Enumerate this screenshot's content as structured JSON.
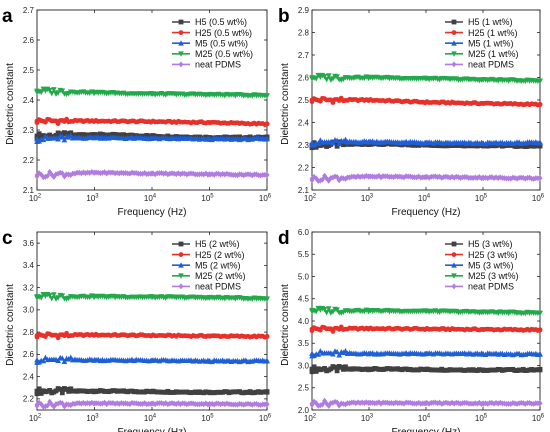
{
  "chart_data": [
    {
      "type": "line",
      "panel": "a",
      "xlabel": "Frequency (Hz)",
      "ylabel": "Dielectric constant",
      "x_scale": "log",
      "xlim": [
        100,
        1000000
      ],
      "ylim": [
        2.1,
        2.7
      ],
      "yticks": [
        "2.1",
        "2.2",
        "2.3",
        "2.4",
        "2.5",
        "2.6",
        "2.7"
      ],
      "legend_position": "top-right",
      "series": [
        {
          "name": "H5 (0.5 wt%)",
          "color": "#404040",
          "marker": "square",
          "x": [
            100,
            1000,
            10000,
            100000,
            1000000
          ],
          "y": [
            2.28,
            2.285,
            2.28,
            2.275,
            2.275
          ]
        },
        {
          "name": "H25 (0.5 wt%)",
          "color": "#e8302a",
          "marker": "circle",
          "x": [
            100,
            1000,
            10000,
            100000,
            1000000
          ],
          "y": [
            2.33,
            2.33,
            2.328,
            2.325,
            2.32
          ]
        },
        {
          "name": "M5 (0.5 wt%)",
          "color": "#1f5fd6",
          "marker": "triangle-up",
          "x": [
            100,
            1000,
            10000,
            100000,
            1000000
          ],
          "y": [
            2.27,
            2.275,
            2.272,
            2.27,
            2.27
          ]
        },
        {
          "name": "M25 (0.5 wt%)",
          "color": "#23a94a",
          "marker": "triangle-down",
          "x": [
            100,
            1000,
            10000,
            100000,
            1000000
          ],
          "y": [
            2.43,
            2.425,
            2.42,
            2.418,
            2.415
          ]
        },
        {
          "name": "neat PDMS",
          "color": "#b07ce0",
          "marker": "diamond",
          "x": [
            100,
            1000,
            10000,
            100000,
            1000000
          ],
          "y": [
            2.15,
            2.158,
            2.155,
            2.153,
            2.15
          ]
        }
      ]
    },
    {
      "type": "line",
      "panel": "b",
      "xlabel": "Frequency (Hz)",
      "ylabel": "Dielectric constant",
      "x_scale": "log",
      "xlim": [
        100,
        1000000
      ],
      "ylim": [
        2.1,
        2.9
      ],
      "yticks": [
        "2.1",
        "2.2",
        "2.3",
        "2.4",
        "2.5",
        "2.6",
        "2.7",
        "2.8",
        "2.9"
      ],
      "legend_position": "top-right",
      "series": [
        {
          "name": "H5 (1 wt%)",
          "color": "#404040",
          "marker": "square",
          "x": [
            100,
            1000,
            10000,
            100000,
            1000000
          ],
          "y": [
            2.3,
            2.305,
            2.3,
            2.298,
            2.295
          ]
        },
        {
          "name": "H25 (1 wt%)",
          "color": "#e8302a",
          "marker": "circle",
          "x": [
            100,
            1000,
            10000,
            100000,
            1000000
          ],
          "y": [
            2.5,
            2.5,
            2.49,
            2.485,
            2.48
          ]
        },
        {
          "name": "M5 (1 wt%)",
          "color": "#1f5fd6",
          "marker": "triangle-up",
          "x": [
            100,
            1000,
            10000,
            100000,
            1000000
          ],
          "y": [
            2.31,
            2.315,
            2.31,
            2.308,
            2.31
          ]
        },
        {
          "name": "M25 (1 wt%)",
          "color": "#23a94a",
          "marker": "triangle-down",
          "x": [
            100,
            1000,
            10000,
            100000,
            1000000
          ],
          "y": [
            2.6,
            2.6,
            2.595,
            2.59,
            2.585
          ]
        },
        {
          "name": "neat PDMS",
          "color": "#b07ce0",
          "marker": "diamond",
          "x": [
            100,
            1000,
            10000,
            100000,
            1000000
          ],
          "y": [
            2.15,
            2.16,
            2.158,
            2.155,
            2.152
          ]
        }
      ]
    },
    {
      "type": "line",
      "panel": "c",
      "xlabel": "Frequency (Hz)",
      "ylabel": "Dielectric constant",
      "x_scale": "log",
      "xlim": [
        100,
        1000000
      ],
      "ylim": [
        2.1,
        3.7
      ],
      "yticks": [
        "2.2",
        "2.4",
        "2.6",
        "2.8",
        "3.0",
        "3.2",
        "3.4",
        "3.6"
      ],
      "legend_position": "top-right",
      "series": [
        {
          "name": "H5 (2 wt%)",
          "color": "#404040",
          "marker": "square",
          "x": [
            100,
            1000,
            10000,
            100000,
            1000000
          ],
          "y": [
            2.27,
            2.27,
            2.265,
            2.26,
            2.26
          ]
        },
        {
          "name": "H25 (2 wt%)",
          "color": "#e8302a",
          "marker": "circle",
          "x": [
            100,
            1000,
            10000,
            100000,
            1000000
          ],
          "y": [
            2.77,
            2.775,
            2.77,
            2.765,
            2.76
          ]
        },
        {
          "name": "M5 (2 wt%)",
          "color": "#1f5fd6",
          "marker": "triangle-up",
          "x": [
            100,
            1000,
            10000,
            100000,
            1000000
          ],
          "y": [
            2.55,
            2.55,
            2.545,
            2.54,
            2.54
          ]
        },
        {
          "name": "M25 (2 wt%)",
          "color": "#23a94a",
          "marker": "triangle-down",
          "x": [
            100,
            1000,
            10000,
            100000,
            1000000
          ],
          "y": [
            3.12,
            3.12,
            3.115,
            3.11,
            3.1
          ]
        },
        {
          "name": "neat PDMS",
          "color": "#b07ce0",
          "marker": "diamond",
          "x": [
            100,
            1000,
            10000,
            100000,
            1000000
          ],
          "y": [
            2.15,
            2.16,
            2.158,
            2.155,
            2.15
          ]
        }
      ]
    },
    {
      "type": "line",
      "panel": "d",
      "xlabel": "Frequency (Hz)",
      "ylabel": "Dielectric constant",
      "x_scale": "log",
      "xlim": [
        100,
        1000000
      ],
      "ylim": [
        2.0,
        6.0
      ],
      "yticks": [
        "2.0",
        "2.5",
        "3.0",
        "3.5",
        "4.0",
        "4.5",
        "5.0",
        "5.5",
        "6.0"
      ],
      "legend_position": "top-right",
      "series": [
        {
          "name": "H5 (3 wt%)",
          "color": "#404040",
          "marker": "square",
          "x": [
            100,
            1000,
            10000,
            100000,
            1000000
          ],
          "y": [
            2.92,
            2.92,
            2.91,
            2.9,
            2.9
          ]
        },
        {
          "name": "H25 (3 wt%)",
          "color": "#e8302a",
          "marker": "circle",
          "x": [
            100,
            1000,
            10000,
            100000,
            1000000
          ],
          "y": [
            3.82,
            3.83,
            3.82,
            3.81,
            3.8
          ]
        },
        {
          "name": "M5 (3 wt%)",
          "color": "#1f5fd6",
          "marker": "triangle-up",
          "x": [
            100,
            1000,
            10000,
            100000,
            1000000
          ],
          "y": [
            3.27,
            3.27,
            3.265,
            3.26,
            3.25
          ]
        },
        {
          "name": "M25 (3 wt%)",
          "color": "#23a94a",
          "marker": "triangle-down",
          "x": [
            100,
            1000,
            10000,
            100000,
            1000000
          ],
          "y": [
            4.24,
            4.23,
            4.22,
            4.2,
            4.18
          ]
        },
        {
          "name": "neat PDMS",
          "color": "#b07ce0",
          "marker": "diamond",
          "x": [
            100,
            1000,
            10000,
            100000,
            1000000
          ],
          "y": [
            2.15,
            2.16,
            2.155,
            2.15,
            2.15
          ]
        }
      ]
    }
  ],
  "x_tick_labels": [
    {
      "base": "10",
      "exp": "2"
    },
    {
      "base": "10",
      "exp": "3"
    },
    {
      "base": "10",
      "exp": "4"
    },
    {
      "base": "10",
      "exp": "5"
    },
    {
      "base": "10",
      "exp": "6"
    }
  ]
}
